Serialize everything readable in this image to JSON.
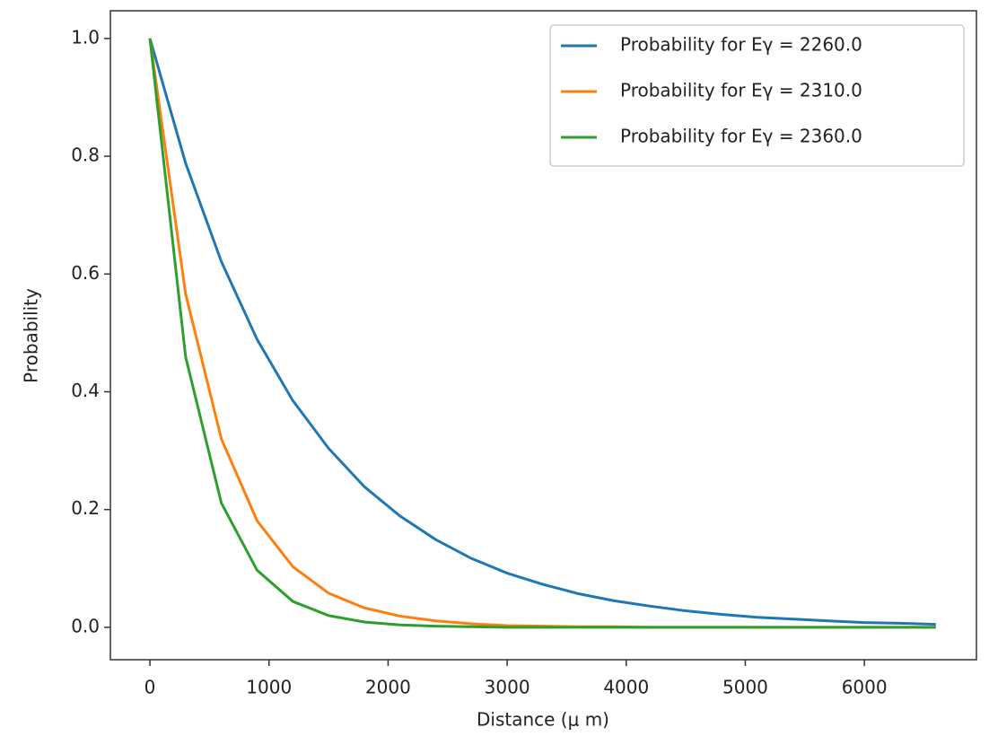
{
  "chart_data": {
    "type": "line",
    "xlabel": "Distance (μ m)",
    "ylabel": "Probability",
    "x": [
      0,
      300,
      600,
      900,
      1200,
      1500,
      1800,
      2100,
      2400,
      2700,
      3000,
      3300,
      3600,
      3900,
      4200,
      4500,
      4800,
      5100,
      5400,
      5700,
      6000,
      6300,
      6600
    ],
    "series": [
      {
        "name": "Probability for Eγ = 2260.0",
        "color": "#1f77b4",
        "values": [
          1,
          0.788,
          0.621,
          0.489,
          0.385,
          0.304,
          0.239,
          0.189,
          0.149,
          0.117,
          0.092,
          0.073,
          0.057,
          0.045,
          0.036,
          0.028,
          0.022,
          0.017,
          0.014,
          0.011,
          0.008,
          0.007,
          0.005
        ]
      },
      {
        "name": "Probability for Eγ = 2310.0",
        "color": "#ff7f0e",
        "values": [
          1,
          0.566,
          0.32,
          0.181,
          0.103,
          0.058,
          0.033,
          0.019,
          0.011,
          0.006,
          0.003,
          0.002,
          0.001,
          0.001,
          0,
          0,
          0,
          0,
          0,
          0,
          0,
          0,
          0
        ]
      },
      {
        "name": "Probability for Eγ = 2360.0",
        "color": "#2ca02c",
        "values": [
          1,
          0.459,
          0.211,
          0.097,
          0.044,
          0.02,
          0.009,
          0.004,
          0.002,
          0.001,
          0,
          0,
          0,
          0,
          0,
          0,
          0,
          0,
          0,
          0,
          0,
          0,
          0
        ]
      }
    ],
    "xlim": [
      -332,
      6941
    ],
    "ylim": [
      -0.055,
      1.047
    ],
    "xticks": [
      0,
      1000,
      2000,
      3000,
      4000,
      5000,
      6000
    ],
    "yticks": [
      {
        "value": 0,
        "label": "0.0"
      },
      0.2,
      0.4,
      0.6,
      0.8,
      {
        "value": 1,
        "label": "1.0"
      }
    ],
    "legend": "upper right"
  }
}
